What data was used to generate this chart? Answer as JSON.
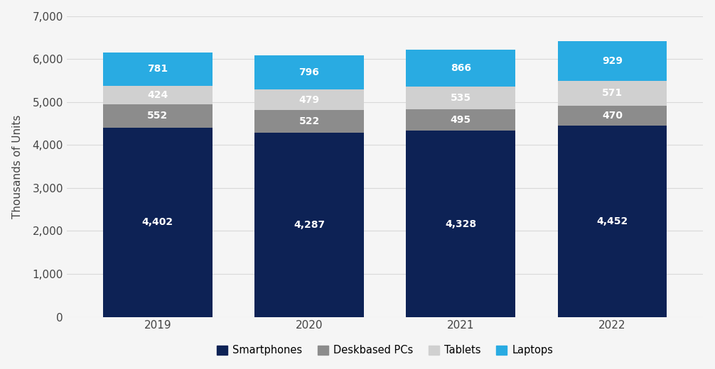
{
  "categories": [
    "2019",
    "2020",
    "2021",
    "2022"
  ],
  "smartphones": [
    4402,
    4287,
    4328,
    4452
  ],
  "deskbased_pcs": [
    552,
    522,
    495,
    470
  ],
  "tablets": [
    424,
    479,
    535,
    571
  ],
  "laptops": [
    781,
    796,
    866,
    929
  ],
  "colors": {
    "smartphones": "#0d2255",
    "deskbased_pcs": "#8c8c8c",
    "tablets": "#d0d0d0",
    "laptops": "#29abe2"
  },
  "ylabel": "Thousands of Units",
  "ylim": [
    0,
    7000
  ],
  "yticks": [
    0,
    1000,
    2000,
    3000,
    4000,
    5000,
    6000,
    7000
  ],
  "legend_labels": [
    "Smartphones",
    "Deskbased PCs",
    "Tablets",
    "Laptops"
  ],
  "background_color": "#f5f5f5",
  "plot_background": "#f5f5f5",
  "grid_color": "#d9d9d9",
  "bar_width": 0.72
}
